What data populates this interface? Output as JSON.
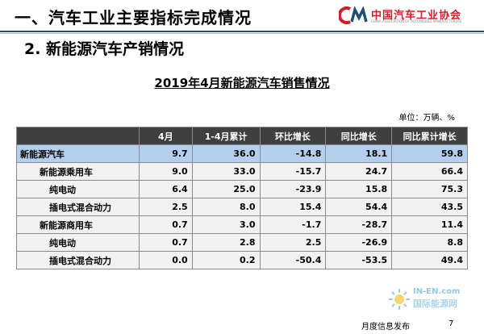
{
  "header": {
    "section_title": "一、汽车工业主要指标完成情况",
    "logo_text": "中国汽车工业协会",
    "logo_en": "CHINA ASSOCIATION OF AUTOMOBILE MANUFACTURERS",
    "logo_mark": "CAAM-logo-icon",
    "brand_color": "#d31d26"
  },
  "subtitle": "2. 新能源汽车产销情况",
  "table": {
    "title": "2019年4月新能源汽车销售情况",
    "unit": "单位：万辆、%",
    "columns": [
      "",
      "4月",
      "1-4月累计",
      "环比增长",
      "同比增长",
      "同比累计增长"
    ],
    "rows": [
      {
        "label": "新能源汽车",
        "level": 0,
        "values": [
          "9.7",
          "36.0",
          "-14.8",
          "18.1",
          "59.8"
        ]
      },
      {
        "label": "新能源乘用车",
        "level": 1,
        "values": [
          "9.0",
          "33.0",
          "-15.7",
          "24.7",
          "66.4"
        ]
      },
      {
        "label": "纯电动",
        "level": 2,
        "values": [
          "6.4",
          "25.0",
          "-23.9",
          "15.8",
          "75.3"
        ]
      },
      {
        "label": "插电式混合动力",
        "level": 2,
        "values": [
          "2.5",
          "8.0",
          "15.4",
          "54.4",
          "43.5"
        ]
      },
      {
        "label": "新能源商用车",
        "level": 1,
        "values": [
          "0.7",
          "3.0",
          "-1.7",
          "-28.7",
          "11.4"
        ]
      },
      {
        "label": "纯电动",
        "level": 2,
        "values": [
          "0.7",
          "2.8",
          "2.5",
          "-26.9",
          "8.8"
        ]
      },
      {
        "label": "插电式混合动力",
        "level": 2,
        "values": [
          "0.0",
          "0.2",
          "-50.4",
          "-53.5",
          "49.4"
        ]
      }
    ],
    "header_color": "#3f3f3f",
    "highlight_color": "#b4cfee"
  },
  "footer": {
    "text": "月度信息发布",
    "page_number": "7"
  },
  "watermark": {
    "en": "IN-EN.com",
    "cn": "国际能源网",
    "icon": "sun-logo-icon"
  }
}
